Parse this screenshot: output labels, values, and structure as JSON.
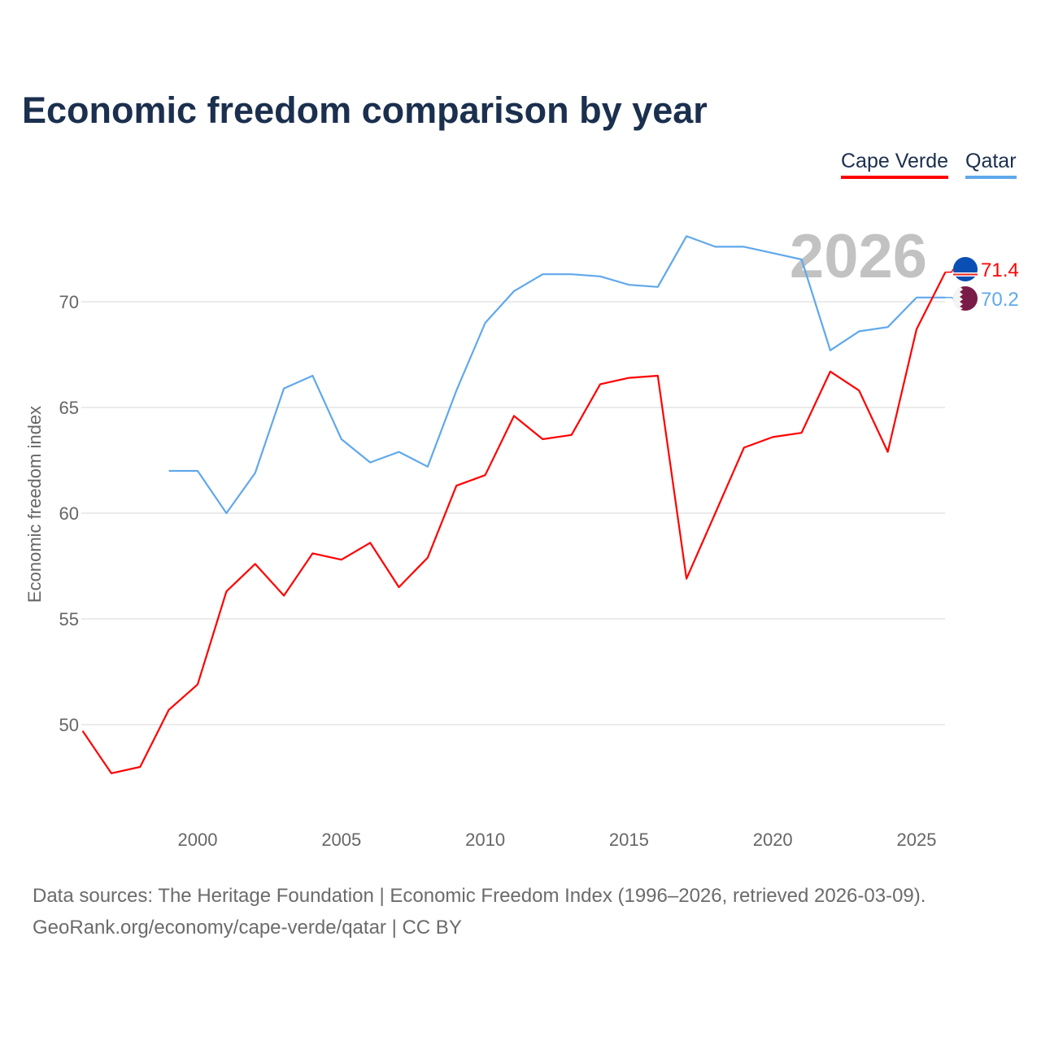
{
  "title": "Economic freedom comparison by year",
  "footer": {
    "line1": "Data sources: The Heritage Foundation | Economic Freedom Index (1996–2026, retrieved 2026-03-09).",
    "line2": "GeoRank.org/economy/cape-verde/qatar | CC BY"
  },
  "chart_data": {
    "type": "line",
    "title": "Economic freedom comparison by year",
    "ylabel": "Economic freedom index",
    "xlabel": "",
    "year_watermark": "2026",
    "xlim": [
      1996,
      2026
    ],
    "ylim": [
      45.5,
      74
    ],
    "xticks": [
      2000,
      2005,
      2010,
      2015,
      2020,
      2025
    ],
    "yticks": [
      50,
      55,
      60,
      65,
      70
    ],
    "grid": true,
    "legend_position": "top-right",
    "series": [
      {
        "name": "Cape Verde",
        "color": "#ff0000",
        "end_label": "71.4",
        "flag": "cape-verde-flag",
        "x": [
          1996,
          1997,
          1998,
          1999,
          2000,
          2001,
          2002,
          2003,
          2004,
          2005,
          2006,
          2007,
          2008,
          2009,
          2010,
          2011,
          2012,
          2013,
          2014,
          2015,
          2016,
          2017,
          2018,
          2019,
          2020,
          2021,
          2022,
          2023,
          2024,
          2025,
          2026
        ],
        "values": [
          49.7,
          47.7,
          48.0,
          50.7,
          51.9,
          56.3,
          57.6,
          56.1,
          58.1,
          57.8,
          58.6,
          56.5,
          57.9,
          61.3,
          61.8,
          64.6,
          63.5,
          63.7,
          66.1,
          66.4,
          66.5,
          56.9,
          60.0,
          63.1,
          63.6,
          63.8,
          66.7,
          65.8,
          62.9,
          68.7,
          71.4
        ]
      },
      {
        "name": "Qatar",
        "color": "#60a8eb",
        "end_label": "70.2",
        "flag": "qatar-flag",
        "x": [
          1999,
          2000,
          2001,
          2002,
          2003,
          2004,
          2005,
          2006,
          2007,
          2008,
          2009,
          2010,
          2011,
          2012,
          2013,
          2014,
          2015,
          2016,
          2017,
          2018,
          2019,
          2020,
          2021,
          2022,
          2023,
          2024,
          2025,
          2026
        ],
        "values": [
          62.0,
          62.0,
          60.0,
          61.9,
          65.9,
          66.5,
          63.5,
          62.4,
          62.9,
          62.2,
          65.8,
          69.0,
          70.5,
          71.3,
          71.3,
          71.2,
          70.8,
          70.7,
          73.1,
          72.6,
          72.6,
          72.3,
          72.0,
          67.7,
          68.6,
          68.8,
          70.2,
          70.2
        ]
      }
    ]
  }
}
